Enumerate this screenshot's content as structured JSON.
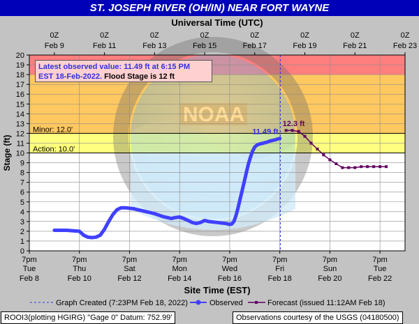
{
  "header": {
    "title": "ST. JOSEPH RIVER (OH/IN) NEAR FORT WAYNE"
  },
  "chart_data": {
    "type": "line",
    "top_axis_label": "Universal Time (UTC)",
    "top_ticks": [
      {
        "t": 24,
        "line1": "0Z",
        "line2": "Feb  9"
      },
      {
        "t": 72,
        "line1": "0Z",
        "line2": "Feb 11"
      },
      {
        "t": 120,
        "line1": "0Z",
        "line2": "Feb 13"
      },
      {
        "t": 168,
        "line1": "0Z",
        "line2": "Feb 15"
      },
      {
        "t": 216,
        "line1": "0Z",
        "line2": "Feb 17"
      },
      {
        "t": 264,
        "line1": "0Z",
        "line2": "Feb 19"
      },
      {
        "t": 312,
        "line1": "0Z",
        "line2": "Feb 21"
      },
      {
        "t": 360,
        "line1": "0Z",
        "line2": "Feb 23"
      }
    ],
    "bottom_ticks": [
      {
        "t": 0,
        "line1": "7pm",
        "line2": "Tue",
        "line3": "Feb 8"
      },
      {
        "t": 48,
        "line1": "7pm",
        "line2": "Thu",
        "line3": "Feb 10"
      },
      {
        "t": 96,
        "line1": "7pm",
        "line2": "Sat",
        "line3": "Feb 12"
      },
      {
        "t": 144,
        "line1": "7pm",
        "line2": "Mon",
        "line3": "Feb 14"
      },
      {
        "t": 192,
        "line1": "7pm",
        "line2": "Wed",
        "line3": "Feb 16"
      },
      {
        "t": 240,
        "line1": "7pm",
        "line2": "Fri",
        "line3": "Feb 18"
      },
      {
        "t": 288,
        "line1": "7pm",
        "line2": "Sun",
        "line3": "Feb 20"
      },
      {
        "t": 336,
        "line1": "7pm",
        "line2": "Tue",
        "line3": "Feb 22"
      }
    ],
    "xlabel": "Site Time (EST)",
    "ylabel": "Stage (ft)",
    "ylim": [
      0,
      20
    ],
    "yticks": [
      0,
      1,
      2,
      3,
      4,
      5,
      6,
      7,
      8,
      9,
      10,
      11,
      12,
      13,
      14,
      15,
      16,
      17,
      18,
      19,
      20
    ],
    "xlim": [
      0,
      360
    ],
    "x_units": "hours after 7pm EST Feb 8",
    "stage_bands": [
      {
        "from": 0,
        "to": 10,
        "color": "#ffffff"
      },
      {
        "from": 10,
        "to": 12,
        "color": "#ffff80"
      },
      {
        "from": 12,
        "to": 18,
        "color": "#ffc860"
      },
      {
        "from": 18,
        "to": 20,
        "color": "#ff7f7f"
      }
    ],
    "thresholds": [
      {
        "value": 12.0,
        "label": "Minor: 12.0'"
      },
      {
        "value": 10.0,
        "label": "Action: 10.0'"
      }
    ],
    "graph_created_t": 240.5,
    "series": [
      {
        "name": "Observed",
        "color": "#4040ff",
        "x": [
          24,
          30,
          36,
          42,
          48,
          52,
          56,
          60,
          64,
          68,
          72,
          76,
          80,
          84,
          88,
          92,
          96,
          100,
          104,
          108,
          112,
          116,
          120,
          124,
          128,
          132,
          136,
          140,
          144,
          148,
          152,
          156,
          160,
          164,
          168,
          172,
          176,
          180,
          184,
          188,
          192,
          194,
          196,
          198,
          200,
          202,
          204,
          206,
          208,
          210,
          212,
          214,
          216,
          218,
          220,
          222,
          224,
          226,
          228,
          230,
          232,
          234,
          236,
          238,
          240
        ],
        "y": [
          2.1,
          2.1,
          2.1,
          2.05,
          2.0,
          1.6,
          1.4,
          1.35,
          1.4,
          1.6,
          2.2,
          3.0,
          3.7,
          4.2,
          4.4,
          4.4,
          4.35,
          4.3,
          4.2,
          4.1,
          4.0,
          3.9,
          3.8,
          3.65,
          3.5,
          3.4,
          3.3,
          3.4,
          3.45,
          3.3,
          3.1,
          2.9,
          2.8,
          2.9,
          3.1,
          3.0,
          2.95,
          2.9,
          2.85,
          2.8,
          2.7,
          2.75,
          3.0,
          3.6,
          4.4,
          5.3,
          6.2,
          7.1,
          8.0,
          8.9,
          9.6,
          10.2,
          10.6,
          10.8,
          10.9,
          10.95,
          11.0,
          11.05,
          11.1,
          11.2,
          11.25,
          11.3,
          11.35,
          11.42,
          11.49
        ]
      },
      {
        "name": "Forecast (issued 11:12AM Feb 18)",
        "color": "#600060",
        "x": [
          246,
          252,
          258,
          264,
          270,
          276,
          282,
          288,
          294,
          300,
          306,
          312,
          318,
          324,
          330,
          336,
          342
        ],
        "y": [
          12.3,
          12.3,
          12.2,
          11.7,
          11.0,
          10.4,
          9.8,
          9.3,
          8.9,
          8.5,
          8.5,
          8.5,
          8.6,
          8.6,
          8.6,
          8.6,
          8.6
        ]
      }
    ],
    "annotations": {
      "observed_value": "11.49 ft",
      "forecast_crest": "12.3 ft"
    },
    "info_box": {
      "line1": "Latest observed value: 11.49 ft at 6:15 PM",
      "line2_blue": "EST 18-Feb-2022.",
      "line2_black": " Flood Stage is 12 ft"
    },
    "legend": {
      "graph_created": "Graph Created (7:23PM Feb 18, 2022)",
      "observed": "Observed",
      "forecast": "Forecast (issued 11:12AM Feb 18)"
    }
  },
  "footer": {
    "left": "ROOI3(plotting HGIRG) \"Gage 0\" Datum: 752.99'",
    "right": "Observations courtesy of the USGS (04180500)"
  },
  "watermark": {
    "icon": "noaa-logo-icon"
  }
}
